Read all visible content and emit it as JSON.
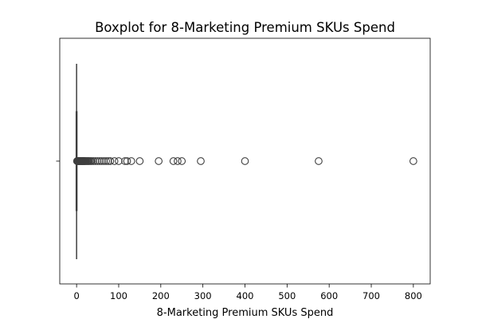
{
  "chart_data": {
    "type": "boxplot",
    "orientation": "horizontal",
    "title": "Boxplot for 8-Marketing Premium SKUs Spend",
    "xlabel": "8-Marketing Premium SKUs Spend",
    "ylabel": "",
    "xlim": [
      -40,
      840
    ],
    "xticks": [
      0,
      100,
      200,
      300,
      400,
      500,
      600,
      700,
      800
    ],
    "grid": false,
    "box": {
      "min": 0,
      "q1": 0,
      "median": 0,
      "q3": 0,
      "whisker_high": 0
    },
    "outliers": [
      1,
      2,
      3,
      4,
      5,
      6,
      7,
      8,
      9,
      10,
      11,
      12,
      13,
      14,
      15,
      16,
      17,
      18,
      19,
      20,
      22,
      24,
      26,
      28,
      30,
      33,
      36,
      40,
      45,
      50,
      55,
      60,
      65,
      70,
      75,
      80,
      90,
      100,
      115,
      120,
      130,
      150,
      195,
      230,
      240,
      250,
      295,
      400,
      575,
      800
    ],
    "colors": {
      "box_line": "#3f3f3f",
      "axes": "#000000",
      "background": "#ffffff"
    }
  }
}
